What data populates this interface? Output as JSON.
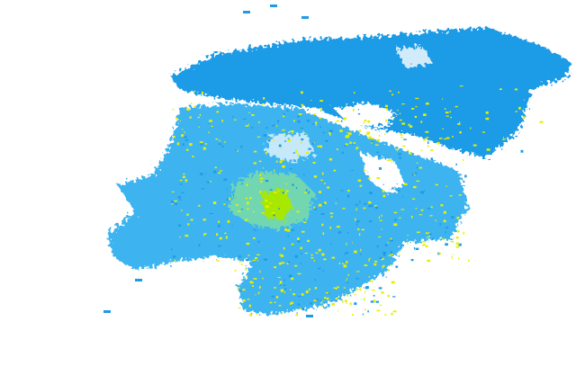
{
  "colors": {
    "background": "#ffffff",
    "low_intensity": "#1e9be6",
    "low_mid_intensity": "#3cb4f0",
    "mid_intensity": "#7fe0a0",
    "high_intensity": "#e6f000",
    "peak_intensity": "#a8e800"
  }
}
